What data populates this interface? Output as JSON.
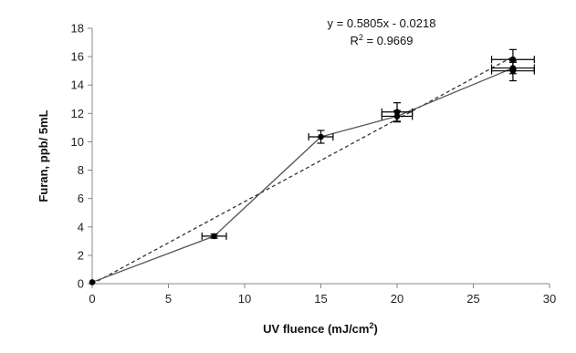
{
  "chart_data": {
    "type": "line",
    "xlabel": "UV fluence (mJ/cm",
    "xlabel_sup": "2",
    "xlabel_close": ")",
    "ylabel": "Furan, ppb/ 5mL",
    "xlim": [
      0,
      30
    ],
    "ylim": [
      0,
      18
    ],
    "xticks": [
      "0",
      "5",
      "10",
      "15",
      "20",
      "25",
      "30"
    ],
    "yticks": [
      "0",
      "2",
      "4",
      "6",
      "8",
      "10",
      "12",
      "14",
      "16",
      "18"
    ],
    "grid": false,
    "annotation": {
      "equation": "y = 0.5805x - 0.0218",
      "r2_label": "R",
      "r2_sup": "2",
      "r2_value": " = 0.9669"
    },
    "series": [
      {
        "style": "solid-with-markers",
        "points": [
          {
            "x": 0,
            "y": 0.1,
            "xerr": 0,
            "yerr": 0
          },
          {
            "x": 8,
            "y": 3.35,
            "xerr": 0.8,
            "yerr": 0.15
          },
          {
            "x": 15,
            "y": 10.35,
            "xerr": 0.8,
            "yerr": 0.45
          },
          {
            "x": 20,
            "y": 12.1,
            "xerr": 1.0,
            "yerr": 0.65
          },
          {
            "x": 20,
            "y": 11.8,
            "xerr": 1.0,
            "yerr": 0.4
          },
          {
            "x": 27.6,
            "y": 15.2,
            "xerr": 1.4,
            "yerr": 0.4
          },
          {
            "x": 27.6,
            "y": 15.8,
            "xerr": 1.4,
            "yerr": 0.7
          },
          {
            "x": 27.6,
            "y": 15.0,
            "xerr": 1.4,
            "yerr": 0.7
          }
        ],
        "line_order": [
          {
            "x": 0,
            "y": 0.1
          },
          {
            "x": 8,
            "y": 3.35
          },
          {
            "x": 15,
            "y": 10.35
          },
          {
            "x": 20,
            "y": 11.8
          },
          {
            "x": 27.6,
            "y": 15.2
          }
        ]
      },
      {
        "style": "dashed-linear-fit",
        "slope": 0.5805,
        "intercept": -0.0218,
        "x_range": [
          0,
          27.6
        ]
      }
    ],
    "colors": {
      "line": "#555555",
      "marker": "#000000",
      "fit": "#333333",
      "axis": "#888888"
    }
  }
}
